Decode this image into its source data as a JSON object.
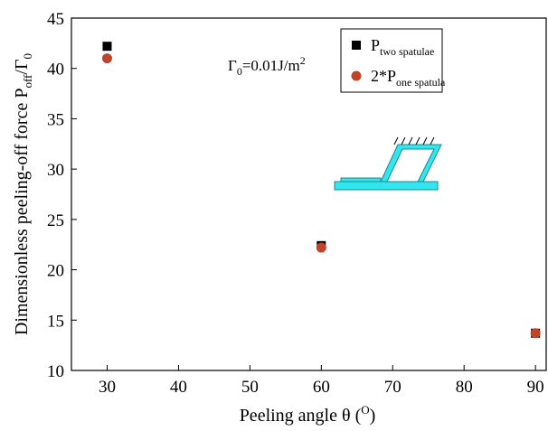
{
  "chart_data": {
    "type": "scatter",
    "xlabel": [
      "Peeling angle θ (",
      "O",
      ")"
    ],
    "ylabel": [
      "Dimensionless peeling-off force P",
      "off",
      "/Γ",
      "0"
    ],
    "annotation": [
      "Γ",
      "0",
      "=0.01J/m",
      "2"
    ],
    "x": [
      30,
      60,
      90
    ],
    "series": [
      {
        "name": [
          "P",
          "two spatulae"
        ],
        "color": "#000000",
        "marker": "square",
        "values": [
          42.2,
          22.4,
          13.7
        ]
      },
      {
        "name": [
          "2*P",
          "one spatula"
        ],
        "color": "#c0442a",
        "marker": "circle",
        "values": [
          41.0,
          22.2,
          13.7
        ]
      }
    ],
    "xlim": [
      25,
      91.5
    ],
    "ylim": [
      10,
      45
    ],
    "xticks": [
      30,
      40,
      50,
      60,
      70,
      80,
      90
    ],
    "yticks": [
      10,
      15,
      20,
      25,
      30,
      35,
      40,
      45
    ]
  }
}
